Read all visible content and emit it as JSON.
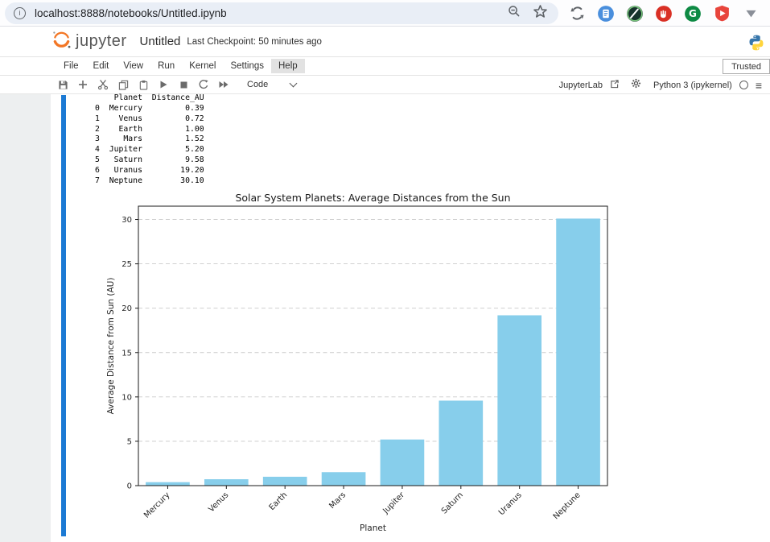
{
  "browser": {
    "url": "localhost:8888/notebooks/Untitled.ipynb"
  },
  "header": {
    "logo_text": "jupyter",
    "notebook_title": "Untitled",
    "checkpoint": "Last Checkpoint: 50 minutes ago"
  },
  "menu": {
    "items": [
      "File",
      "Edit",
      "View",
      "Run",
      "Kernel",
      "Settings",
      "Help"
    ],
    "active_item": "Help",
    "trusted_label": "Trusted"
  },
  "toolbar": {
    "cell_type_value": "Code",
    "jupyterlab_label": "JupyterLab",
    "kernel_name": "Python 3 (ipykernel)"
  },
  "output": {
    "dataframe_lines": [
      "    Planet  Distance_AU",
      "0  Mercury         0.39",
      "1    Venus         0.72",
      "2    Earth         1.00",
      "3     Mars         1.52",
      "4  Jupiter         5.20",
      "5   Saturn         9.58",
      "6   Uranus        19.20",
      "7  Neptune        30.10"
    ]
  },
  "chart_data": {
    "type": "bar",
    "title": "Solar System Planets: Average Distances from the Sun",
    "xlabel": "Planet",
    "ylabel": "Average Distance from Sun (AU)",
    "categories": [
      "Mercury",
      "Venus",
      "Earth",
      "Mars",
      "Jupiter",
      "Saturn",
      "Uranus",
      "Neptune"
    ],
    "values": [
      0.39,
      0.72,
      1.0,
      1.52,
      5.2,
      9.58,
      19.2,
      30.1
    ],
    "ylim": [
      0,
      31.5
    ],
    "yticks": [
      0,
      5,
      10,
      15,
      20,
      25,
      30
    ],
    "bar_color": "#87CEEB",
    "grid": "y-dashed",
    "legend": "none"
  },
  "colors": {
    "active_cell_bar": "#1c7ad4",
    "url_pill_bg": "#e9eef6",
    "jupyter_orange": "#f37726"
  },
  "icons": {
    "info-icon": "i-in-circle",
    "zoom-out-icon": "magnifier-with-minus",
    "bookmark-star-icon": "star-outline",
    "recycle-extension-icon": "gray-cycle-arrows",
    "notes-extension-icon": "blue-circle-white-document",
    "privacy-extension-icon": "dark-circle-diagonal-slash",
    "adblock-extension-icon": "red-circle-white-hand",
    "grammarly-extension-icon": "green-circle-letter-G",
    "shield-play-extension-icon": "red-shield-white-play",
    "dropdown-triangle-icon": "gray-filled-triangle",
    "jupyter-logo-icon": "orange-double-arc",
    "python-logo-icon": "blue-yellow-snakes",
    "save-icon": "floppy-disk",
    "add-cell-icon": "plus",
    "cut-icon": "scissors",
    "copy-icon": "two-rectangles",
    "paste-icon": "clipboard",
    "run-icon": "play-triangle",
    "stop-icon": "filled-square",
    "restart-kernel-icon": "circular-arrow",
    "run-all-icon": "double-play-triangle",
    "chevron-down-icon": "angle-down",
    "external-link-icon": "box-with-arrow",
    "gear-icon": "gear",
    "kernel-status-icon": "open-circle",
    "hamburger-menu-icon": "three-lines"
  }
}
